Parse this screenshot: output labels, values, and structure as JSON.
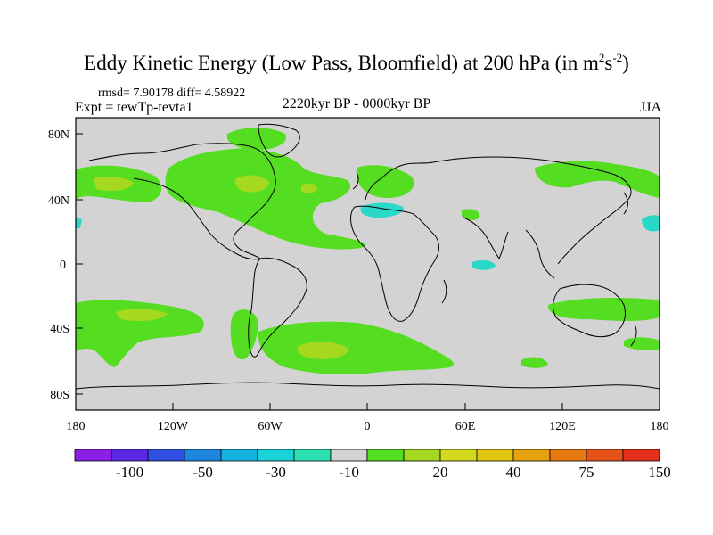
{
  "title": {
    "main": "Eddy Kinetic Energy (Low Pass, Bloomfield) at 200 hPa (in m",
    "sup1": "2",
    "mid": "s",
    "sup2": "-2",
    "end": ")"
  },
  "stats": "rmsd= 7.90178 diff= 4.58922",
  "expt": "Expt = tewTp-tevta1",
  "period": "2220kyr BP - 0000kyr BP",
  "season": "JJA",
  "map": {
    "lat_labels": [
      "80N",
      "40N",
      "0",
      "40S",
      "80S"
    ],
    "lon_labels": [
      "180",
      "120W",
      "60W",
      "0",
      "60E",
      "120E",
      "180"
    ],
    "background_color": "#d3d3d3",
    "green_color": "#55dd22",
    "lightgreen_color": "#a4d920",
    "cyan_color": "#2ad8c7"
  },
  "colorbar": {
    "colors": [
      "#8a1fe6",
      "#5c28e4",
      "#2f50e2",
      "#1f86e0",
      "#17b3e0",
      "#19d3d9",
      "#2cdfb0",
      "#d3d3d3",
      "#55dd22",
      "#a4d920",
      "#d3d91c",
      "#e2c412",
      "#e6a20f",
      "#e67a10",
      "#e4521a",
      "#e2301c"
    ],
    "labels": [
      "-100",
      "-50",
      "-30",
      "-10",
      "20",
      "40",
      "75",
      "150"
    ]
  }
}
